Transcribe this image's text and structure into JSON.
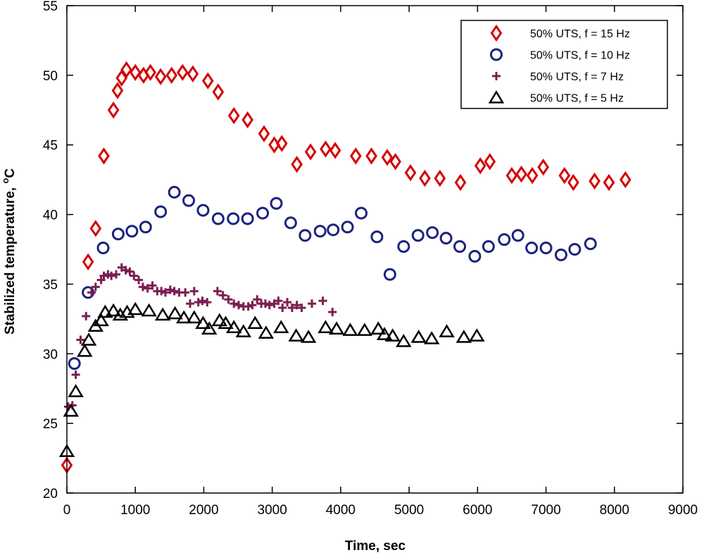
{
  "chart_data": {
    "type": "scatter",
    "title": "",
    "xlabel": "Time, sec",
    "ylabel_main": "Stabilized temperature, ",
    "ylabel_sup": "o",
    "ylabel_unit": "C",
    "xlim": [
      0,
      9000
    ],
    "ylim": [
      20,
      55
    ],
    "xticks": [
      0,
      1000,
      2000,
      3000,
      4000,
      5000,
      6000,
      7000,
      8000,
      9000
    ],
    "yticks": [
      20,
      25,
      30,
      35,
      40,
      45,
      50,
      55
    ],
    "grid": false,
    "legend_position": "top-right",
    "series": [
      {
        "name": "50% UTS, f = 15 Hz",
        "marker": "diamond",
        "color": "#d40000",
        "points": [
          [
            0,
            22
          ],
          [
            310,
            36.6
          ],
          [
            420,
            39
          ],
          [
            540,
            44.2
          ],
          [
            680,
            47.5
          ],
          [
            740,
            48.9
          ],
          [
            800,
            49.8
          ],
          [
            870,
            50.4
          ],
          [
            1000,
            50.2
          ],
          [
            1120,
            50
          ],
          [
            1220,
            50.2
          ],
          [
            1370,
            49.9
          ],
          [
            1530,
            50
          ],
          [
            1690,
            50.2
          ],
          [
            1840,
            50.1
          ],
          [
            2060,
            49.6
          ],
          [
            2210,
            48.8
          ],
          [
            2440,
            47.1
          ],
          [
            2640,
            46.8
          ],
          [
            2880,
            45.8
          ],
          [
            3030,
            45
          ],
          [
            3140,
            45.1
          ],
          [
            3360,
            43.6
          ],
          [
            3560,
            44.5
          ],
          [
            3780,
            44.7
          ],
          [
            3920,
            44.6
          ],
          [
            4220,
            44.2
          ],
          [
            4450,
            44.2
          ],
          [
            4680,
            44.1
          ],
          [
            4800,
            43.8
          ],
          [
            5020,
            43
          ],
          [
            5230,
            42.6
          ],
          [
            5450,
            42.6
          ],
          [
            5750,
            42.3
          ],
          [
            6040,
            43.5
          ],
          [
            6180,
            43.8
          ],
          [
            6500,
            42.8
          ],
          [
            6640,
            42.9
          ],
          [
            6800,
            42.8
          ],
          [
            6960,
            43.4
          ],
          [
            7270,
            42.8
          ],
          [
            7400,
            42.3
          ],
          [
            7710,
            42.4
          ],
          [
            7920,
            42.3
          ],
          [
            8160,
            42.5
          ]
        ]
      },
      {
        "name": "50% UTS, f = 10 Hz",
        "marker": "circle",
        "color": "#1a237e",
        "points": [
          [
            110,
            29.3
          ],
          [
            310,
            34.4
          ],
          [
            530,
            37.6
          ],
          [
            750,
            38.6
          ],
          [
            950,
            38.8
          ],
          [
            1150,
            39.1
          ],
          [
            1370,
            40.2
          ],
          [
            1570,
            41.6
          ],
          [
            1780,
            41
          ],
          [
            1990,
            40.3
          ],
          [
            2210,
            39.7
          ],
          [
            2430,
            39.7
          ],
          [
            2640,
            39.7
          ],
          [
            2860,
            40.1
          ],
          [
            3060,
            40.8
          ],
          [
            3270,
            39.4
          ],
          [
            3480,
            38.5
          ],
          [
            3700,
            38.8
          ],
          [
            3890,
            38.9
          ],
          [
            4100,
            39.1
          ],
          [
            4300,
            40.1
          ],
          [
            4530,
            38.4
          ],
          [
            4720,
            35.7
          ],
          [
            4920,
            37.7
          ],
          [
            5130,
            38.5
          ],
          [
            5340,
            38.7
          ],
          [
            5540,
            38.3
          ],
          [
            5740,
            37.7
          ],
          [
            5960,
            37
          ],
          [
            6160,
            37.7
          ],
          [
            6390,
            38.2
          ],
          [
            6590,
            38.5
          ],
          [
            6790,
            37.6
          ],
          [
            7000,
            37.6
          ],
          [
            7220,
            37.1
          ],
          [
            7420,
            37.5
          ],
          [
            7650,
            37.9
          ]
        ]
      },
      {
        "name": "50% UTS, f = 7 Hz",
        "marker": "plus",
        "color": "#7b1f52",
        "points": [
          [
            20,
            26.2
          ],
          [
            80,
            26.3
          ],
          [
            130,
            28.5
          ],
          [
            200,
            31
          ],
          [
            280,
            32.7
          ],
          [
            360,
            34.4
          ],
          [
            420,
            34.8
          ],
          [
            500,
            35.3
          ],
          [
            540,
            35.6
          ],
          [
            600,
            35.7
          ],
          [
            650,
            35.6
          ],
          [
            720,
            35.7
          ],
          [
            800,
            36.2
          ],
          [
            860,
            36
          ],
          [
            920,
            35.9
          ],
          [
            980,
            35.6
          ],
          [
            1050,
            35.3
          ],
          [
            1110,
            34.8
          ],
          [
            1180,
            34.7
          ],
          [
            1250,
            34.9
          ],
          [
            1320,
            34.5
          ],
          [
            1380,
            34.5
          ],
          [
            1440,
            34.4
          ],
          [
            1510,
            34.6
          ],
          [
            1570,
            34.5
          ],
          [
            1640,
            34.4
          ],
          [
            1730,
            34.4
          ],
          [
            1800,
            33.6
          ],
          [
            1860,
            34.5
          ],
          [
            1920,
            33.7
          ],
          [
            1980,
            33.8
          ],
          [
            2050,
            33.7
          ],
          [
            2200,
            34.5
          ],
          [
            2280,
            34.2
          ],
          [
            2360,
            33.9
          ],
          [
            2440,
            33.6
          ],
          [
            2510,
            33.5
          ],
          [
            2580,
            33.4
          ],
          [
            2650,
            33.4
          ],
          [
            2710,
            33.5
          ],
          [
            2780,
            33.9
          ],
          [
            2840,
            33.6
          ],
          [
            2900,
            33.6
          ],
          [
            2960,
            33.5
          ],
          [
            3030,
            33.6
          ],
          [
            3090,
            33.8
          ],
          [
            3150,
            33.3
          ],
          [
            3220,
            33.7
          ],
          [
            3290,
            33.3
          ],
          [
            3360,
            33.5
          ],
          [
            3430,
            33.3
          ],
          [
            3580,
            33.6
          ],
          [
            3740,
            33.8
          ],
          [
            3880,
            33
          ]
        ]
      },
      {
        "name": "50% UTS, f = 5 Hz",
        "marker": "triangle",
        "color": "#000000",
        "points": [
          [
            0,
            23
          ],
          [
            60,
            25.9
          ],
          [
            130,
            27.3
          ],
          [
            260,
            30.2
          ],
          [
            320,
            31
          ],
          [
            420,
            32
          ],
          [
            500,
            32.4
          ],
          [
            560,
            33
          ],
          [
            680,
            33.1
          ],
          [
            780,
            32.8
          ],
          [
            880,
            33
          ],
          [
            1000,
            33.2
          ],
          [
            1200,
            33.1
          ],
          [
            1400,
            32.8
          ],
          [
            1580,
            32.9
          ],
          [
            1710,
            32.6
          ],
          [
            1860,
            32.6
          ],
          [
            1990,
            32.2
          ],
          [
            2080,
            31.8
          ],
          [
            2230,
            32.4
          ],
          [
            2320,
            32.2
          ],
          [
            2440,
            31.9
          ],
          [
            2580,
            31.6
          ],
          [
            2750,
            32.2
          ],
          [
            2910,
            31.5
          ],
          [
            3130,
            31.9
          ],
          [
            3350,
            31.3
          ],
          [
            3530,
            31.2
          ],
          [
            3780,
            31.9
          ],
          [
            3940,
            31.8
          ],
          [
            4140,
            31.7
          ],
          [
            4350,
            31.7
          ],
          [
            4550,
            31.8
          ],
          [
            4640,
            31.4
          ],
          [
            4760,
            31.3
          ],
          [
            4920,
            30.9
          ],
          [
            5140,
            31.2
          ],
          [
            5330,
            31.1
          ],
          [
            5550,
            31.6
          ],
          [
            5800,
            31.2
          ],
          [
            5990,
            31.3
          ]
        ]
      }
    ]
  }
}
